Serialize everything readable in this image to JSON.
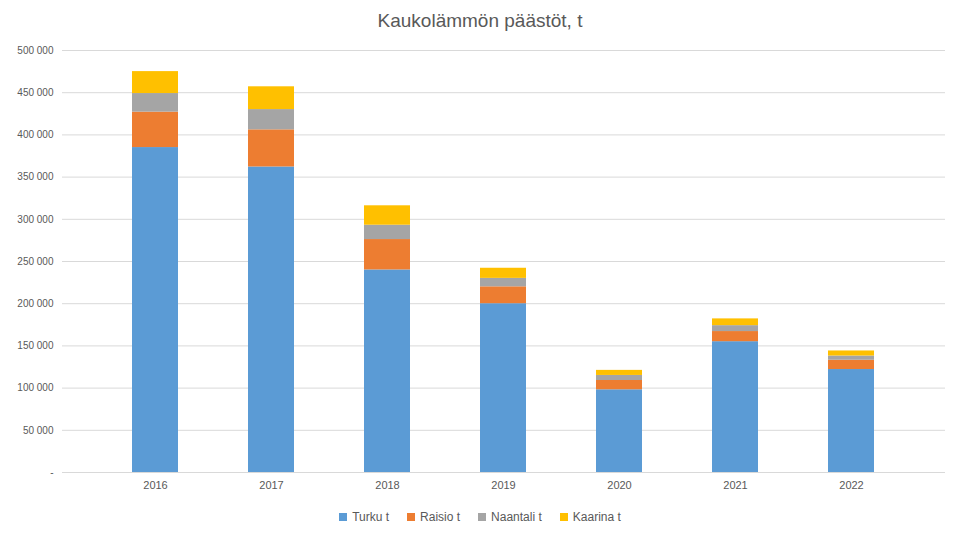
{
  "chart_data": {
    "type": "bar",
    "stacked": true,
    "title": "Kaukolämmön päästöt, t",
    "categories": [
      "2016",
      "2017",
      "2018",
      "2019",
      "2020",
      "2021",
      "2022"
    ],
    "series": [
      {
        "name": "Turku t",
        "color": "#5b9bd5",
        "values": [
          385000,
          362000,
          240000,
          200000,
          98000,
          155000,
          122000
        ]
      },
      {
        "name": "Raisio t",
        "color": "#ed7d31",
        "values": [
          42000,
          44000,
          36000,
          20000,
          11000,
          12000,
          11000
        ]
      },
      {
        "name": "Naantali t",
        "color": "#a5a5a5",
        "values": [
          22000,
          24000,
          17000,
          10000,
          6000,
          7000,
          5000
        ]
      },
      {
        "name": "Kaarina t",
        "color": "#ffc000",
        "values": [
          26000,
          27000,
          23000,
          12000,
          6000,
          8000,
          6000
        ]
      }
    ],
    "ylim": [
      0,
      500000
    ],
    "yticks": [
      {
        "value": 0,
        "label": "-"
      },
      {
        "value": 50000,
        "label": "50 000"
      },
      {
        "value": 100000,
        "label": "100 000"
      },
      {
        "value": 150000,
        "label": "150 000"
      },
      {
        "value": 200000,
        "label": "200 000"
      },
      {
        "value": 250000,
        "label": "250 000"
      },
      {
        "value": 300000,
        "label": "300 000"
      },
      {
        "value": 350000,
        "label": "350 000"
      },
      {
        "value": 400000,
        "label": "400 000"
      },
      {
        "value": 450000,
        "label": "450 000"
      },
      {
        "value": 500000,
        "label": "500 000"
      }
    ],
    "grid": true,
    "legend": "bottom"
  }
}
